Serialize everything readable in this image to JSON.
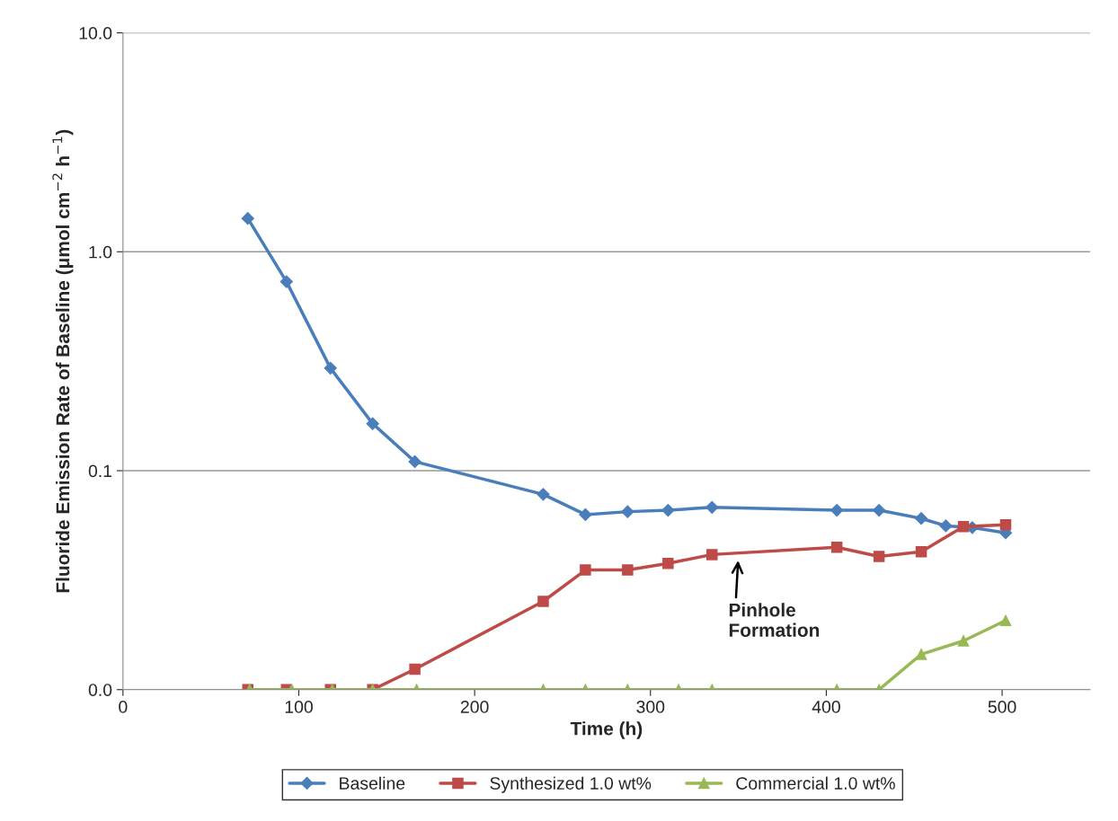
{
  "chart_data": {
    "type": "line",
    "xlabel": "Time (h)",
    "ylabel": "Fluoride Emission Rate of Baseline (μmol cm$^{−2}$ h$^{−1}$)",
    "log": "y",
    "xlim": [
      0,
      550
    ],
    "xticks": [
      0,
      100,
      200,
      300,
      400,
      500
    ],
    "ylim": [
      0.01,
      10
    ],
    "yticks": [
      {
        "value": 0.01,
        "label": "0.0"
      },
      {
        "value": 0.1,
        "label": "0.1"
      },
      {
        "value": 1,
        "label": "1.0"
      },
      {
        "value": 10,
        "label": "10.0"
      }
    ],
    "grid": "y",
    "legend": "bottom",
    "line_style": "solid",
    "annotations": [
      {
        "text": "Pinhole\nFormation",
        "x": 350,
        "y": 0.041
      }
    ],
    "series": [
      {
        "name": "Baseline",
        "color": "#4a7ebb",
        "marker": "diamond",
        "x": [
          71,
          93,
          118,
          142,
          166,
          239,
          263,
          287,
          310,
          335,
          406,
          430,
          454,
          468,
          483,
          502
        ],
        "values": [
          1.42,
          0.73,
          0.294,
          0.164,
          0.11,
          0.078,
          0.063,
          0.065,
          0.066,
          0.068,
          0.066,
          0.066,
          0.0605,
          0.056,
          0.055,
          0.052
        ]
      },
      {
        "name": "Synthesized 1.0 wt%",
        "color": "#be4b48",
        "marker": "square",
        "x": [
          71,
          93,
          118,
          142,
          166,
          239,
          263,
          287,
          310,
          335,
          406,
          430,
          454,
          478,
          502
        ],
        "values": [
          0.01,
          0.01,
          0.01,
          0.01,
          0.0124,
          0.0253,
          0.0352,
          0.0352,
          0.0377,
          0.0414,
          0.0447,
          0.0406,
          0.0426,
          0.0556,
          0.0566
        ]
      },
      {
        "name": "Commercial 1.0 wt%",
        "color": "#98b954",
        "marker": "triangle",
        "x": [
          72,
          96,
          119,
          142,
          167,
          239,
          263,
          287,
          316,
          335,
          406,
          430,
          454,
          478,
          502
        ],
        "values": [
          0.01,
          0.01,
          0.01,
          0.01,
          0.01,
          0.01,
          0.01,
          0.01,
          0.01,
          0.01,
          0.01,
          0.01,
          0.0145,
          0.0167,
          0.0207
        ]
      }
    ]
  }
}
